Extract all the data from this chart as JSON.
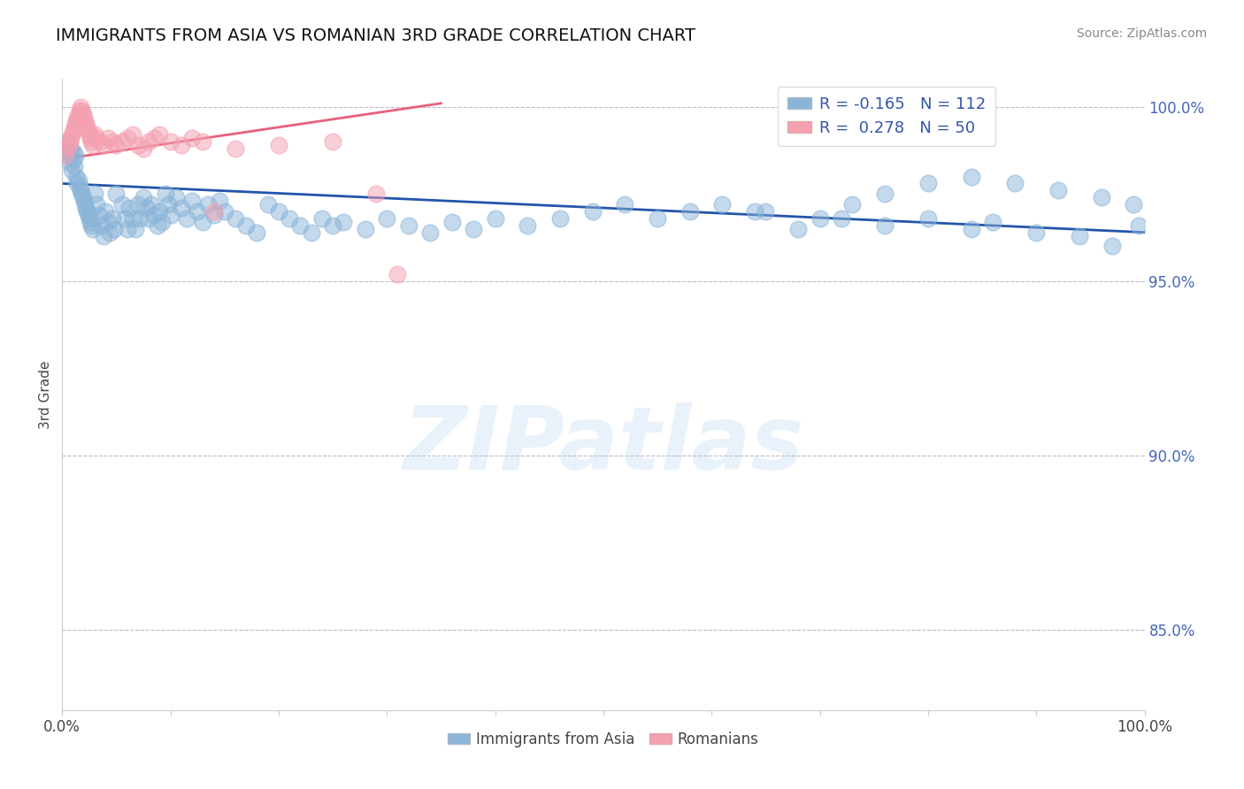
{
  "title": "IMMIGRANTS FROM ASIA VS ROMANIAN 3RD GRADE CORRELATION CHART",
  "source": "Source: ZipAtlas.com",
  "ylabel": "3rd Grade",
  "xlim": [
    0.0,
    1.0
  ],
  "ylim": [
    0.827,
    1.008
  ],
  "yticks": [
    0.85,
    0.9,
    0.95,
    1.0
  ],
  "ytick_labels": [
    "85.0%",
    "90.0%",
    "95.0%",
    "100.0%"
  ],
  "blue_R": -0.165,
  "blue_N": 112,
  "pink_R": 0.278,
  "pink_N": 50,
  "legend_blue": "Immigrants from Asia",
  "legend_pink": "Romanians",
  "blue_color": "#8ab4d8",
  "pink_color": "#f4a0b0",
  "blue_line_color": "#2255aa",
  "pink_line_color": "#e8607a",
  "watermark": "ZIPatlas",
  "blue_line_x0": 0.0,
  "blue_line_y0": 0.978,
  "blue_line_x1": 1.0,
  "blue_line_y1": 0.964,
  "pink_line_x0": 0.0,
  "pink_line_y0": 0.985,
  "pink_line_x1": 0.35,
  "pink_line_y1": 1.001,
  "blue_scatter_x": [
    0.003,
    0.005,
    0.006,
    0.007,
    0.008,
    0.009,
    0.01,
    0.01,
    0.011,
    0.012,
    0.013,
    0.014,
    0.015,
    0.016,
    0.017,
    0.018,
    0.019,
    0.02,
    0.021,
    0.022,
    0.023,
    0.024,
    0.025,
    0.026,
    0.027,
    0.028,
    0.03,
    0.032,
    0.034,
    0.036,
    0.038,
    0.04,
    0.042,
    0.044,
    0.046,
    0.048,
    0.05,
    0.055,
    0.058,
    0.06,
    0.062,
    0.065,
    0.068,
    0.07,
    0.072,
    0.075,
    0.078,
    0.08,
    0.082,
    0.085,
    0.088,
    0.09,
    0.092,
    0.095,
    0.098,
    0.1,
    0.105,
    0.11,
    0.115,
    0.12,
    0.125,
    0.13,
    0.135,
    0.14,
    0.145,
    0.15,
    0.16,
    0.17,
    0.18,
    0.19,
    0.2,
    0.21,
    0.22,
    0.23,
    0.24,
    0.25,
    0.26,
    0.28,
    0.3,
    0.32,
    0.34,
    0.36,
    0.38,
    0.4,
    0.43,
    0.46,
    0.49,
    0.52,
    0.55,
    0.58,
    0.61,
    0.65,
    0.7,
    0.73,
    0.76,
    0.8,
    0.84,
    0.88,
    0.92,
    0.96,
    0.99,
    0.995,
    0.64,
    0.68,
    0.72,
    0.76,
    0.8,
    0.84,
    0.86,
    0.9,
    0.94,
    0.97
  ],
  "blue_scatter_y": [
    0.988,
    0.99,
    0.986,
    0.984,
    0.988,
    0.982,
    0.985,
    0.987,
    0.983,
    0.986,
    0.98,
    0.978,
    0.979,
    0.977,
    0.976,
    0.975,
    0.974,
    0.973,
    0.972,
    0.971,
    0.97,
    0.969,
    0.968,
    0.967,
    0.966,
    0.965,
    0.975,
    0.972,
    0.969,
    0.966,
    0.963,
    0.97,
    0.967,
    0.964,
    0.968,
    0.965,
    0.975,
    0.972,
    0.968,
    0.965,
    0.971,
    0.968,
    0.965,
    0.972,
    0.968,
    0.974,
    0.971,
    0.968,
    0.972,
    0.969,
    0.966,
    0.97,
    0.967,
    0.975,
    0.972,
    0.969,
    0.974,
    0.971,
    0.968,
    0.973,
    0.97,
    0.967,
    0.972,
    0.969,
    0.973,
    0.97,
    0.968,
    0.966,
    0.964,
    0.972,
    0.97,
    0.968,
    0.966,
    0.964,
    0.968,
    0.966,
    0.967,
    0.965,
    0.968,
    0.966,
    0.964,
    0.967,
    0.965,
    0.968,
    0.966,
    0.968,
    0.97,
    0.972,
    0.968,
    0.97,
    0.972,
    0.97,
    0.968,
    0.972,
    0.975,
    0.978,
    0.98,
    0.978,
    0.976,
    0.974,
    0.972,
    0.966,
    0.97,
    0.965,
    0.968,
    0.966,
    0.968,
    0.965,
    0.967,
    0.964,
    0.963,
    0.96
  ],
  "pink_scatter_x": [
    0.003,
    0.005,
    0.006,
    0.007,
    0.008,
    0.009,
    0.01,
    0.011,
    0.012,
    0.013,
    0.014,
    0.015,
    0.016,
    0.017,
    0.018,
    0.019,
    0.02,
    0.021,
    0.022,
    0.023,
    0.024,
    0.025,
    0.026,
    0.027,
    0.028,
    0.03,
    0.032,
    0.035,
    0.038,
    0.042,
    0.046,
    0.05,
    0.055,
    0.06,
    0.065,
    0.07,
    0.075,
    0.08,
    0.085,
    0.09,
    0.1,
    0.11,
    0.12,
    0.13,
    0.14,
    0.16,
    0.2,
    0.25,
    0.29,
    0.31
  ],
  "pink_scatter_y": [
    0.986,
    0.988,
    0.989,
    0.99,
    0.991,
    0.992,
    0.993,
    0.994,
    0.995,
    0.996,
    0.997,
    0.998,
    0.999,
    1.0,
    0.999,
    0.998,
    0.997,
    0.996,
    0.995,
    0.994,
    0.993,
    0.992,
    0.991,
    0.99,
    0.989,
    0.992,
    0.991,
    0.99,
    0.989,
    0.991,
    0.99,
    0.989,
    0.99,
    0.991,
    0.992,
    0.989,
    0.988,
    0.99,
    0.991,
    0.992,
    0.99,
    0.989,
    0.991,
    0.99,
    0.97,
    0.988,
    0.989,
    0.99,
    0.975,
    0.952
  ]
}
